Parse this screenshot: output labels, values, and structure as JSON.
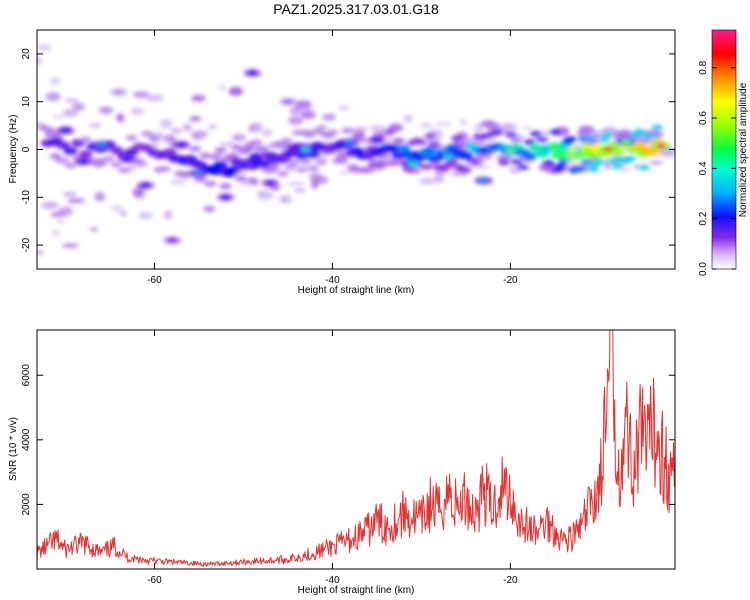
{
  "title": "PAZ1.2025.317.03.01.G18",
  "chart_data": [
    {
      "type": "heatmap",
      "xlabel": "Height of straight line (km)",
      "ylabel": "Frequency (Hz)",
      "xlim": [
        -73.2,
        -1.5
      ],
      "ylim": [
        -25,
        25
      ],
      "xticks": [
        -60,
        -40,
        -20
      ],
      "yticks": [
        -20,
        -10,
        0,
        10,
        20
      ],
      "xtick_labels": [
        "-60",
        "-40",
        "-20"
      ],
      "ytick_labels": [
        "-20",
        "-10",
        "0",
        "10",
        "20"
      ],
      "colorbar": {
        "label": "Normalized spectral amplitude",
        "range": [
          0.0,
          0.95
        ],
        "ticks": [
          0.0,
          0.2,
          0.4,
          0.6,
          0.8
        ],
        "tick_labels": [
          "0.0",
          "0.2",
          "0.4",
          "0.6",
          "0.8"
        ],
        "colormap": "rainbow",
        "colors": [
          "#ffffff",
          "#c9a8f5",
          "#8a2be2",
          "#0000ff",
          "#00c8ff",
          "#00ff80",
          "#7fff00",
          "#ffff00",
          "#ffa500",
          "#ff0000",
          "#ff1493"
        ]
      },
      "ridge": {
        "description": "main spectral band",
        "points": [
          {
            "x": -72,
            "y": 0.5,
            "amp": 0.25
          },
          {
            "x": -60,
            "y": -0.5,
            "amp": 0.25
          },
          {
            "x": -52,
            "y": -4.5,
            "amp": 0.3
          },
          {
            "x": -46,
            "y": -1.0,
            "amp": 0.25
          },
          {
            "x": -40,
            "y": 0.5,
            "amp": 0.25
          },
          {
            "x": -32,
            "y": -1.0,
            "amp": 0.35
          },
          {
            "x": -25,
            "y": -0.5,
            "amp": 0.4
          },
          {
            "x": -15,
            "y": -0.5,
            "amp": 0.5
          },
          {
            "x": -10,
            "y": 0.0,
            "amp": 0.8
          },
          {
            "x": -3,
            "y": 0.5,
            "amp": 0.75
          }
        ]
      },
      "blobs": [
        {
          "x": -70,
          "y": 4.0,
          "amp": 0.3
        },
        {
          "x": -68,
          "y": -2.5,
          "amp": 0.3
        },
        {
          "x": -66,
          "y": 1.0,
          "amp": 0.35
        },
        {
          "x": -63,
          "y": -2.0,
          "amp": 0.3
        },
        {
          "x": -61,
          "y": -7.5,
          "amp": 0.25
        },
        {
          "x": -57,
          "y": 1.0,
          "amp": 0.3
        },
        {
          "x": -55,
          "y": -5.0,
          "amp": 0.35
        },
        {
          "x": -50,
          "y": -3.5,
          "amp": 0.3
        },
        {
          "x": -47,
          "y": -7.0,
          "amp": 0.25
        },
        {
          "x": -43,
          "y": 0.0,
          "amp": 0.4
        },
        {
          "x": -38,
          "y": 1.5,
          "amp": 0.35
        },
        {
          "x": -35,
          "y": 2.0,
          "amp": 0.3
        },
        {
          "x": -31,
          "y": -3.0,
          "amp": 0.45
        },
        {
          "x": -27,
          "y": -1.5,
          "amp": 0.4
        },
        {
          "x": -23,
          "y": -6.5,
          "amp": 0.35
        },
        {
          "x": -20,
          "y": -0.5,
          "amp": 0.55
        },
        {
          "x": -13,
          "y": 0.0,
          "amp": 0.65
        },
        {
          "x": -9,
          "y": 0.0,
          "amp": 0.85
        },
        {
          "x": -7,
          "y": 1.5,
          "amp": 0.55
        },
        {
          "x": -3,
          "y": 0.7,
          "amp": 0.9
        },
        {
          "x": -49,
          "y": 16.0,
          "amp": 0.25
        },
        {
          "x": -45,
          "y": 10.0,
          "amp": 0.15
        },
        {
          "x": -58,
          "y": -19.0,
          "amp": 0.2
        },
        {
          "x": -52,
          "y": -10.0,
          "amp": 0.25
        },
        {
          "x": -64,
          "y": 12.0,
          "amp": 0.12
        }
      ]
    },
    {
      "type": "line",
      "xlabel": "Height of straight line (km)",
      "ylabel": "SNR (10 * v/v)",
      "xlim": [
        -73.2,
        -1.5
      ],
      "ylim": [
        0,
        7400
      ],
      "xticks": [
        -60,
        -40,
        -20
      ],
      "yticks": [
        2000,
        4000,
        6000
      ],
      "xtick_labels": [
        "-60",
        "-40",
        "-20"
      ],
      "ytick_labels": [
        "2000",
        "4000",
        "6000"
      ],
      "color": "#e8302f",
      "series": [
        {
          "name": "SNR",
          "x": [
            -73.2,
            -71,
            -70,
            -68,
            -66,
            -64.5,
            -63,
            -60,
            -57,
            -54,
            -51,
            -48,
            -45,
            -42,
            -40,
            -38,
            -36,
            -35,
            -34,
            -32,
            -30,
            -29,
            -28,
            -27,
            -26,
            -25,
            -24,
            -23,
            -22,
            -21,
            -20,
            -19,
            -18,
            -17,
            -16,
            -15,
            -14,
            -13,
            -12,
            -11,
            -10,
            -9.5,
            -9,
            -8.7,
            -8.5,
            -8.2,
            -8,
            -7.5,
            -7,
            -6.5,
            -6,
            -5.5,
            -5,
            -4.5,
            -4,
            -3.5,
            -3,
            -2.5,
            -2,
            -1.5
          ],
          "y": [
            500,
            900,
            600,
            800,
            500,
            700,
            350,
            250,
            200,
            150,
            200,
            250,
            300,
            500,
            700,
            900,
            1200,
            1500,
            1300,
            1700,
            1500,
            2000,
            1800,
            2400,
            1900,
            2200,
            1700,
            2500,
            1800,
            2600,
            2300,
            1500,
            1300,
            1100,
            1500,
            1200,
            900,
            1000,
            1300,
            2000,
            2600,
            3800,
            5200,
            7400,
            6000,
            4200,
            3600,
            3400,
            4400,
            3600,
            3200,
            4000,
            3900,
            3700,
            4200,
            4300,
            3800,
            3200,
            2800,
            3100
          ]
        }
      ]
    }
  ]
}
